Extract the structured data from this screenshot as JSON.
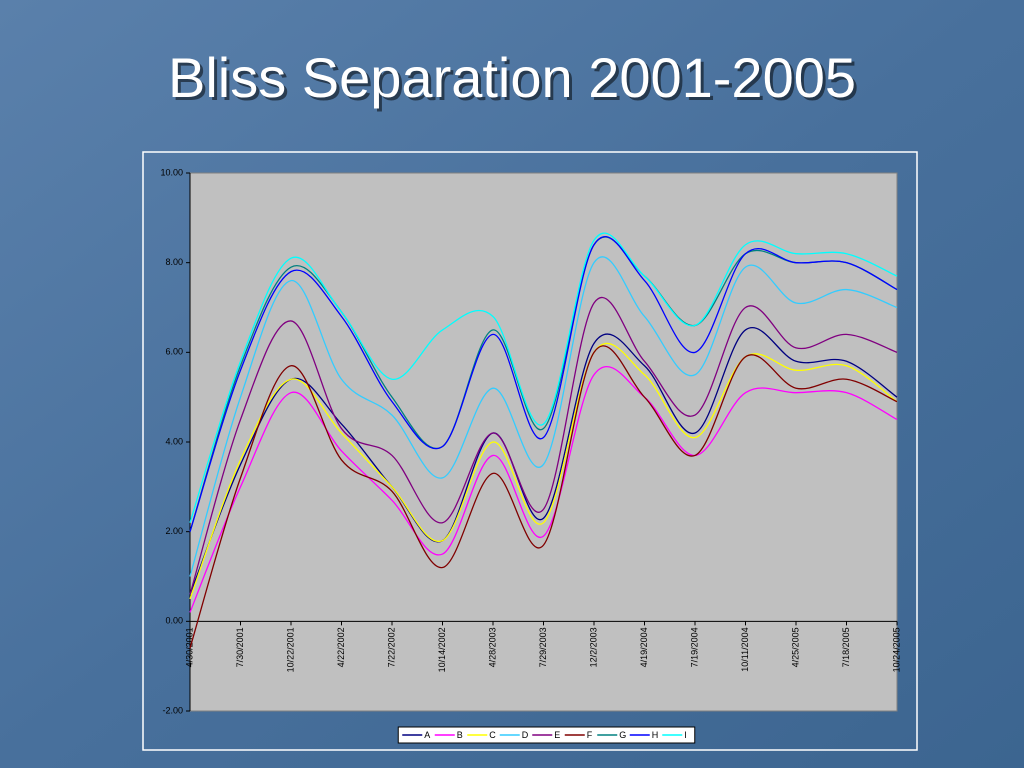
{
  "chart_data": {
    "type": "line",
    "title": "Bliss Separation 2001-2005",
    "categories": [
      "4/30/2001",
      "7/30/2001",
      "10/22/2001",
      "4/22/2002",
      "7/22/2002",
      "10/14/2002",
      "4/28/2003",
      "7/29/2003",
      "12/2/2003",
      "4/19/2004",
      "7/19/2004",
      "10/11/2004",
      "4/25/2005",
      "7/18/2005",
      "10/24/2005"
    ],
    "ylim": [
      -2,
      10
    ],
    "yticks": [
      {
        "value": -2,
        "label": "-2.00"
      },
      {
        "value": 0,
        "label": "0.00"
      },
      {
        "value": 2,
        "label": "2.00"
      },
      {
        "value": 4,
        "label": "4.00"
      },
      {
        "value": 6,
        "label": "6.00"
      },
      {
        "value": 8,
        "label": "8.00"
      },
      {
        "value": 10,
        "label": "10.00"
      }
    ],
    "legend": "bottom",
    "series": [
      {
        "name": "A",
        "color": "#000080",
        "values": [
          0.6,
          3.5,
          5.4,
          4.4,
          3.0,
          1.8,
          4.2,
          2.3,
          6.2,
          5.7,
          4.2,
          6.5,
          5.8,
          5.8,
          5.0
        ]
      },
      {
        "name": "B",
        "color": "#ff00ff",
        "values": [
          0.2,
          3.0,
          5.1,
          3.8,
          2.7,
          1.5,
          3.7,
          1.9,
          5.5,
          5.0,
          3.7,
          5.1,
          5.1,
          5.1,
          4.5
        ]
      },
      {
        "name": "C",
        "color": "#ffff00",
        "values": [
          0.5,
          3.6,
          5.4,
          4.2,
          3.0,
          1.8,
          4.0,
          2.2,
          6.0,
          5.5,
          4.1,
          5.9,
          5.6,
          5.7,
          4.9
        ]
      },
      {
        "name": "D",
        "color": "#33ccff",
        "values": [
          1.0,
          5.0,
          7.6,
          5.4,
          4.6,
          3.2,
          5.2,
          3.5,
          8.0,
          6.8,
          5.5,
          7.9,
          7.1,
          7.4,
          7.0
        ]
      },
      {
        "name": "E",
        "color": "#800080",
        "values": [
          0.6,
          4.5,
          6.7,
          4.3,
          3.7,
          2.2,
          4.2,
          2.5,
          7.1,
          5.8,
          4.6,
          7.0,
          6.1,
          6.4,
          6.0
        ]
      },
      {
        "name": "F",
        "color": "#800000",
        "values": [
          -0.6,
          3.2,
          5.7,
          3.6,
          2.9,
          1.2,
          3.3,
          1.7,
          6.0,
          5.0,
          3.7,
          5.9,
          5.2,
          5.4,
          4.9
        ]
      },
      {
        "name": "G",
        "color": "#008080",
        "values": [
          2.0,
          5.7,
          7.9,
          6.9,
          5.0,
          3.9,
          6.5,
          4.3,
          8.4,
          7.7,
          6.6,
          8.2,
          8.0,
          8.0,
          7.4
        ]
      },
      {
        "name": "H",
        "color": "#0000ff",
        "values": [
          2.0,
          5.6,
          7.8,
          6.8,
          4.9,
          3.9,
          6.4,
          4.1,
          8.4,
          7.6,
          6.0,
          8.2,
          8.0,
          8.0,
          7.4
        ]
      },
      {
        "name": "I",
        "color": "#00ffff",
        "values": [
          2.2,
          5.8,
          8.1,
          6.9,
          5.4,
          6.5,
          6.8,
          4.4,
          8.5,
          7.7,
          6.6,
          8.4,
          8.2,
          8.2,
          7.7
        ]
      }
    ]
  }
}
